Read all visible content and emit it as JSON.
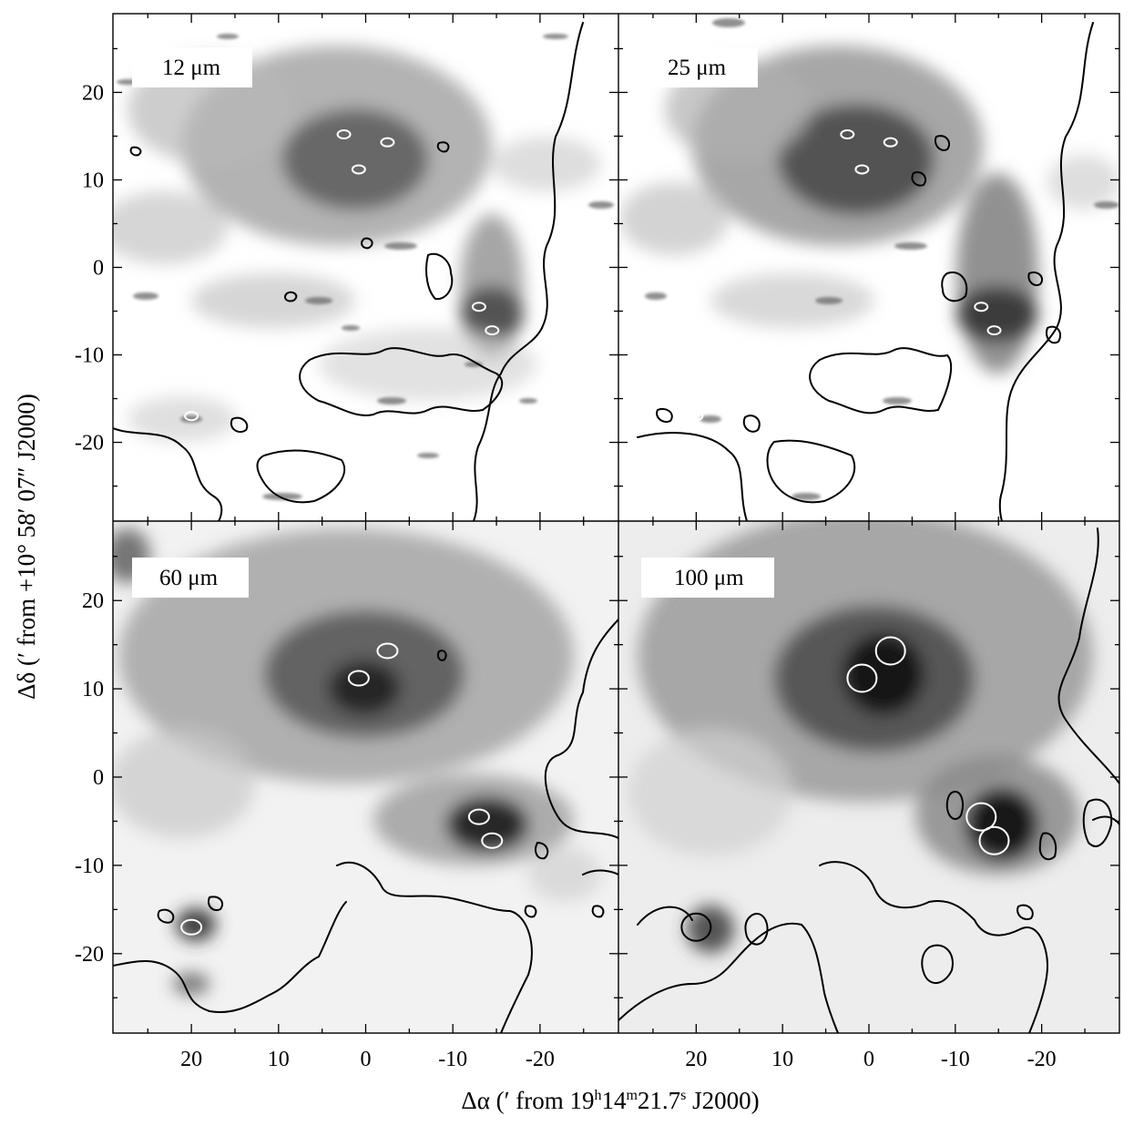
{
  "chart_data": {
    "type": "heatmap",
    "layout": "2x2 panels",
    "colormap": "grayscale (dark = high intensity)",
    "xlabel_parts": {
      "pre": "Δα (′  from  19",
      "h": "h",
      "mid1": "14",
      "m": "m",
      "mid2": "21.7",
      "s": "s",
      "post": " J2000)"
    },
    "ylabel": "Δδ (′ from +10° 58′ 07″ J2000)",
    "xlim": [
      29,
      -29
    ],
    "ylim": [
      -29,
      29
    ],
    "xticks": [
      20,
      10,
      0,
      -10,
      -20
    ],
    "xtick_labels": [
      "20",
      "10",
      "0",
      "-10",
      "-20"
    ],
    "yticks": [
      20,
      10,
      0,
      -10,
      -20
    ],
    "ytick_labels": [
      "20",
      "10",
      "0",
      "-10",
      "-20"
    ],
    "panels": [
      {
        "label": "12 μm",
        "sources": [
          [
            2.5,
            15.2
          ],
          [
            -2.5,
            14.3
          ],
          [
            0.8,
            11.2
          ],
          [
            -13,
            -4.5
          ],
          [
            -14.5,
            -7.2
          ],
          [
            20,
            -17
          ]
        ],
        "blobs": [
          [
            2,
            12,
            1.0
          ],
          [
            -13,
            -5,
            0.9
          ],
          [
            -14,
            -7,
            0.7
          ],
          [
            20,
            -17,
            0.5
          ],
          [
            -8,
            -20,
            0.4
          ]
        ]
      },
      {
        "label": "25 μm",
        "sources": [
          [
            2.5,
            15.2
          ],
          [
            -2.5,
            14.3
          ],
          [
            0.8,
            11.2
          ],
          [
            -13,
            -4.5
          ],
          [
            -14.5,
            -7.2
          ],
          [
            20,
            -17
          ]
        ],
        "blobs": [
          [
            2,
            12,
            1.0
          ],
          [
            -13,
            -5,
            1.0
          ],
          [
            -14,
            -7,
            0.8
          ],
          [
            20,
            -17,
            0.5
          ]
        ]
      },
      {
        "label": "60 μm",
        "sources": [
          [
            -2.5,
            14.3
          ],
          [
            0.8,
            11.2
          ],
          [
            -13,
            -4.5
          ],
          [
            -14.5,
            -7.2
          ],
          [
            20,
            -17
          ]
        ],
        "blobs": [
          [
            1,
            11,
            1.0
          ],
          [
            -13,
            -4.5,
            1.0
          ],
          [
            -14.5,
            -7,
            0.9
          ],
          [
            20,
            -17,
            0.7
          ],
          [
            20,
            -23,
            0.4
          ]
        ]
      },
      {
        "label": "100 μm",
        "sources": [
          [
            -2.5,
            14.3
          ],
          [
            0.8,
            11.2
          ],
          [
            -13,
            -4.5
          ],
          [
            -14.5,
            -7.2
          ],
          [
            20,
            -17
          ]
        ],
        "blobs": [
          [
            0.5,
            11,
            1.0
          ],
          [
            -2.5,
            14.3,
            0.9
          ],
          [
            -13,
            -4.5,
            1.0
          ],
          [
            -14.5,
            -7,
            1.0
          ],
          [
            20,
            -17,
            0.8
          ]
        ]
      }
    ]
  }
}
